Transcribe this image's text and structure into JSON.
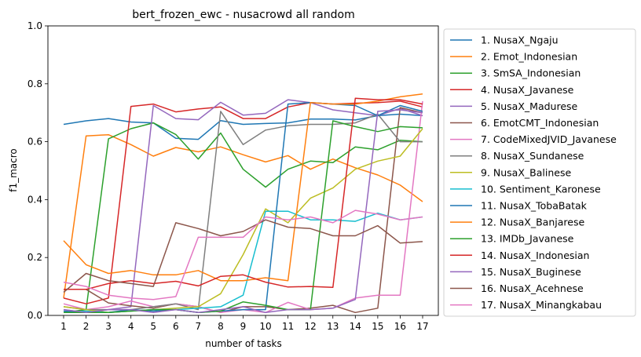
{
  "chart_data": {
    "type": "line",
    "title": "bert_frozen_ewc - nusacrowd all random",
    "xlabel": "number of tasks",
    "ylabel": "f1_macro",
    "x": [
      1,
      2,
      3,
      4,
      5,
      6,
      7,
      8,
      9,
      10,
      11,
      12,
      13,
      14,
      15,
      16,
      17
    ],
    "ylim": [
      0,
      1.0
    ],
    "xlim": [
      0.3,
      17.7
    ],
    "yticks": [
      0.0,
      0.2,
      0.4,
      0.6,
      0.8,
      1.0
    ],
    "ytick_labels": [
      "0.0",
      "0.2",
      "0.4",
      "0.6",
      "0.8",
      "1.0"
    ],
    "xtick_labels": [
      "1",
      "2",
      "3",
      "4",
      "5",
      "6",
      "7",
      "8",
      "9",
      "10",
      "11",
      "12",
      "13",
      "14",
      "15",
      "16",
      "17"
    ],
    "grid": false,
    "legend_position": "outside-right",
    "series": [
      {
        "name": "1. NusaX_Ngaju",
        "color": "#1f77b4",
        "values": [
          0.66,
          0.672,
          0.68,
          0.668,
          0.665,
          0.612,
          0.608,
          0.673,
          0.66,
          0.663,
          0.665,
          0.678,
          0.678,
          0.675,
          0.69,
          0.695,
          0.69
        ]
      },
      {
        "name": "2. Emot_Indonesian",
        "color": "#ff7f0e",
        "values": [
          0.06,
          0.62,
          0.624,
          0.59,
          0.55,
          0.58,
          0.565,
          0.582,
          0.555,
          0.53,
          0.552,
          0.505,
          0.54,
          0.51,
          0.485,
          0.45,
          0.393
        ]
      },
      {
        "name": "3. SmSA_Indonesian",
        "color": "#2ca02c",
        "values": [
          0.01,
          0.02,
          0.61,
          0.645,
          0.665,
          0.625,
          0.54,
          0.63,
          0.505,
          0.443,
          0.505,
          0.533,
          0.528,
          0.582,
          0.572,
          0.605,
          0.6
        ]
      },
      {
        "name": "4. NusaX_Javanese",
        "color": "#d62728",
        "values": [
          0.06,
          0.04,
          0.06,
          0.722,
          0.73,
          0.703,
          0.713,
          0.72,
          0.68,
          0.68,
          0.72,
          0.735,
          0.73,
          0.733,
          0.735,
          0.74,
          0.72
        ]
      },
      {
        "name": "5. NusaX_Madurese",
        "color": "#9467bd",
        "values": [
          0.02,
          0.01,
          0.02,
          0.03,
          0.725,
          0.68,
          0.676,
          0.736,
          0.692,
          0.698,
          0.745,
          0.735,
          0.71,
          0.7,
          0.69,
          0.715,
          0.69
        ]
      },
      {
        "name": "6. EmotCMT_Indonesian",
        "color": "#8c564b",
        "values": [
          0.09,
          0.09,
          0.043,
          0.033,
          0.025,
          0.04,
          0.03,
          0.01,
          0.03,
          0.03,
          0.02,
          0.025,
          0.035,
          0.01,
          0.025,
          0.718,
          0.7
        ]
      },
      {
        "name": "7. CodeMixedJVID_Javanese",
        "color": "#e377c2",
        "values": [
          0.04,
          0.02,
          0.03,
          0.05,
          0.03,
          0.04,
          0.03,
          0.01,
          0.02,
          0.01,
          0.045,
          0.02,
          0.025,
          0.06,
          0.07,
          0.07,
          0.74
        ]
      },
      {
        "name": "8. NusaX_Sundanese",
        "color": "#7f7f7f",
        "values": [
          0.03,
          0.02,
          0.02,
          0.02,
          0.03,
          0.04,
          0.02,
          0.705,
          0.59,
          0.64,
          0.655,
          0.66,
          0.66,
          0.665,
          0.695,
          0.6,
          0.6
        ]
      },
      {
        "name": "9. NusaX_Balinese",
        "color": "#bcbd22",
        "values": [
          0.03,
          0.02,
          0.01,
          0.015,
          0.02,
          0.025,
          0.03,
          0.075,
          0.21,
          0.368,
          0.32,
          0.405,
          0.44,
          0.505,
          0.533,
          0.55,
          0.645
        ]
      },
      {
        "name": "10. Sentiment_Karonese",
        "color": "#17becf",
        "values": [
          0.01,
          0.015,
          0.01,
          0.015,
          0.02,
          0.02,
          0.025,
          0.03,
          0.07,
          0.36,
          0.36,
          0.33,
          0.33,
          0.325,
          0.353,
          0.33,
          0.34
        ]
      },
      {
        "name": "11. NusaX_TobaBatak",
        "color": "#1f77b4",
        "values": [
          0.015,
          0.01,
          0.01,
          0.02,
          0.015,
          0.02,
          0.01,
          0.015,
          0.02,
          0.02,
          0.73,
          0.735,
          0.73,
          0.725,
          0.69,
          0.725,
          0.705
        ]
      },
      {
        "name": "12. NusaX_Banjarese",
        "color": "#ff7f0e",
        "values": [
          0.258,
          0.175,
          0.145,
          0.155,
          0.14,
          0.14,
          0.155,
          0.12,
          0.12,
          0.13,
          0.12,
          0.735,
          0.73,
          0.73,
          0.74,
          0.755,
          0.765
        ]
      },
      {
        "name": "13. IMDb_Javanese",
        "color": "#2ca02c",
        "values": [
          0.01,
          0.01,
          0.01,
          0.015,
          0.02,
          0.02,
          0.01,
          0.015,
          0.047,
          0.035,
          0.02,
          0.02,
          0.672,
          0.652,
          0.635,
          0.652,
          0.648
        ]
      },
      {
        "name": "14. NusaX_Indonesian",
        "color": "#d62728",
        "values": [
          0.09,
          0.09,
          0.11,
          0.12,
          0.11,
          0.118,
          0.102,
          0.135,
          0.14,
          0.115,
          0.098,
          0.1,
          0.097,
          0.75,
          0.745,
          0.745,
          0.73
        ]
      },
      {
        "name": "15. NusaX_Buginese",
        "color": "#9467bd",
        "values": [
          0.02,
          0.01,
          0.02,
          0.02,
          0.01,
          0.02,
          0.01,
          0.02,
          0.03,
          0.01,
          0.02,
          0.02,
          0.025,
          0.055,
          0.705,
          0.71,
          0.7
        ]
      },
      {
        "name": "16. NusaX_Acehnese",
        "color": "#8c564b",
        "values": [
          0.08,
          0.145,
          0.12,
          0.11,
          0.1,
          0.32,
          0.3,
          0.275,
          0.29,
          0.33,
          0.305,
          0.3,
          0.275,
          0.275,
          0.31,
          0.25,
          0.255
        ]
      },
      {
        "name": "17. NusaX_Minangkabau",
        "color": "#e377c2",
        "values": [
          0.115,
          0.1,
          0.07,
          0.06,
          0.055,
          0.065,
          0.27,
          0.27,
          0.27,
          0.34,
          0.33,
          0.34,
          0.32,
          0.363,
          0.35,
          0.33,
          0.34
        ]
      }
    ]
  }
}
